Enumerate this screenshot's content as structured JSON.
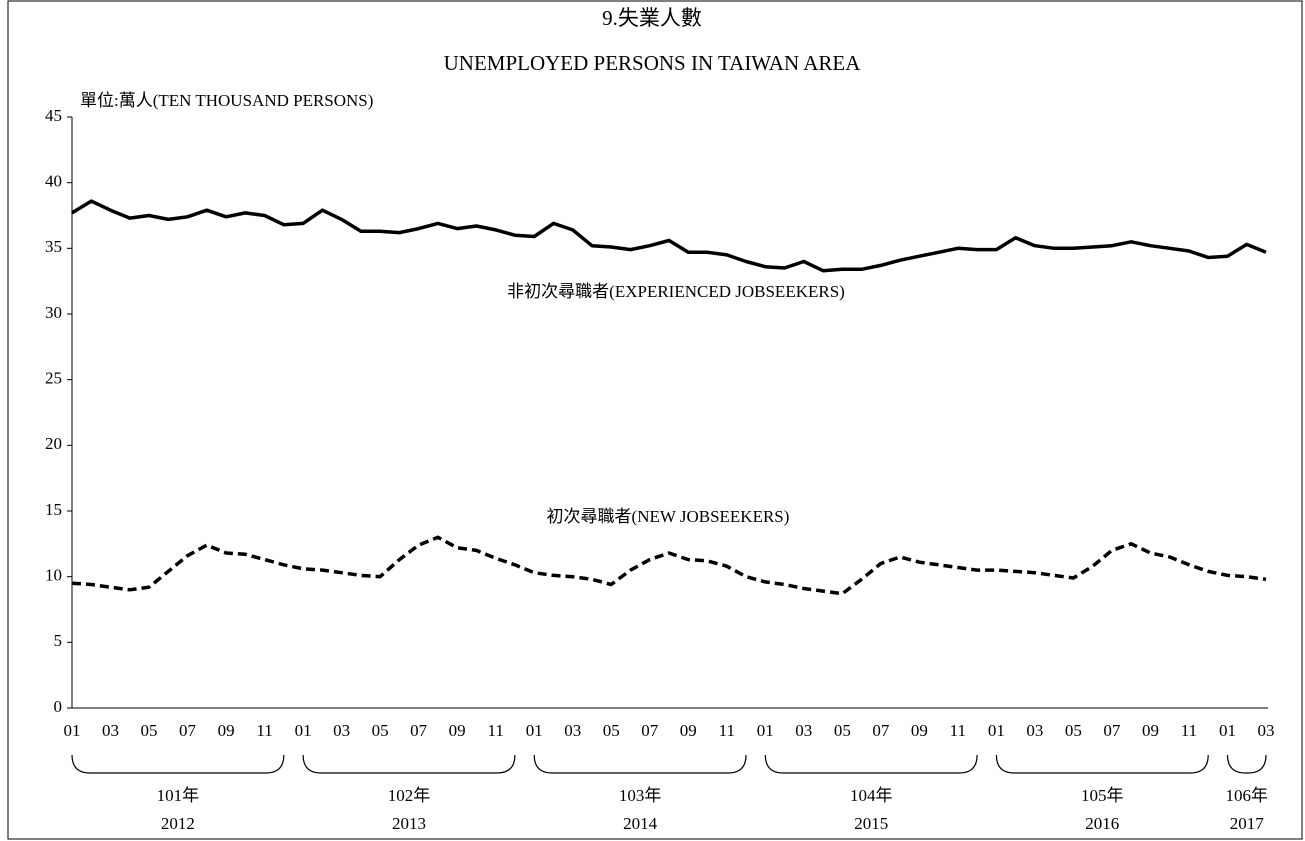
{
  "chart_data": {
    "type": "line",
    "title": "9.失業人數",
    "subtitle": "UNEMPLOYED PERSONS IN TAIWAN AREA",
    "y_axis_label": "單位:萬人(TEN THOUSAND PERSONS)",
    "categories": [
      "01",
      null,
      "03",
      null,
      "05",
      null,
      "07",
      null,
      "09",
      null,
      "11",
      null,
      "01",
      null,
      "03",
      null,
      "05",
      null,
      "07",
      null,
      "09",
      null,
      "11",
      null,
      "01",
      null,
      "03",
      null,
      "05",
      null,
      "07",
      null,
      "09",
      null,
      "11",
      null,
      "01",
      null,
      "03",
      null,
      "05",
      null,
      "07",
      null,
      "09",
      null,
      "11",
      null,
      "01",
      null,
      "03",
      null,
      "05",
      null,
      "07",
      null,
      "09",
      null,
      "11",
      null,
      "01",
      null,
      "03"
    ],
    "year_groups": [
      {
        "roc": "101年",
        "year": "2012"
      },
      {
        "roc": "102年",
        "year": "2013"
      },
      {
        "roc": "103年",
        "year": "2014"
      },
      {
        "roc": "104年",
        "year": "2015"
      },
      {
        "roc": "105年",
        "year": "2016"
      },
      {
        "roc": "106年",
        "year": "2017"
      }
    ],
    "series": [
      {
        "name": "非初次尋職者(EXPERIENCED JOBSEEKERS)",
        "color": "#000000",
        "dash": false,
        "values": [
          37.7,
          38.6,
          37.9,
          37.3,
          37.5,
          37.2,
          37.4,
          37.9,
          37.4,
          37.7,
          37.5,
          36.8,
          36.9,
          37.9,
          37.2,
          36.3,
          36.3,
          36.2,
          36.5,
          36.9,
          36.5,
          36.7,
          36.4,
          36.0,
          35.9,
          36.9,
          36.4,
          35.2,
          35.1,
          34.9,
          35.2,
          35.6,
          34.7,
          34.7,
          34.5,
          34.0,
          33.6,
          33.5,
          34.0,
          33.3,
          33.4,
          33.4,
          33.7,
          34.1,
          34.4,
          34.7,
          35.0,
          34.9,
          34.9,
          35.8,
          35.2,
          35.0,
          35.0,
          35.1,
          35.2,
          35.5,
          35.2,
          35.0,
          34.8,
          34.3,
          34.4,
          35.3,
          34.7
        ]
      },
      {
        "name": "初次尋職者(NEW JOBSEEKERS)",
        "color": "#000000",
        "dash": true,
        "values": [
          9.5,
          9.4,
          9.2,
          9.0,
          9.2,
          10.4,
          11.6,
          12.4,
          11.8,
          11.7,
          11.3,
          10.9,
          10.6,
          10.5,
          10.3,
          10.1,
          10.0,
          11.3,
          12.4,
          13.0,
          12.2,
          12.0,
          11.4,
          10.9,
          10.3,
          10.1,
          10.0,
          9.8,
          9.4,
          10.5,
          11.3,
          11.8,
          11.3,
          11.2,
          10.8,
          10.0,
          9.6,
          9.4,
          9.1,
          8.9,
          8.7,
          9.8,
          11.0,
          11.5,
          11.1,
          10.9,
          10.7,
          10.5,
          10.5,
          10.4,
          10.3,
          10.1,
          9.9,
          10.8,
          12.0,
          12.5,
          11.8,
          11.5,
          10.9,
          10.4,
          10.1,
          10.0,
          9.8
        ]
      }
    ],
    "ylim": [
      0,
      45
    ],
    "yticks": [
      0,
      5,
      10,
      15,
      20,
      25,
      30,
      35,
      40,
      45
    ],
    "grid": false
  }
}
